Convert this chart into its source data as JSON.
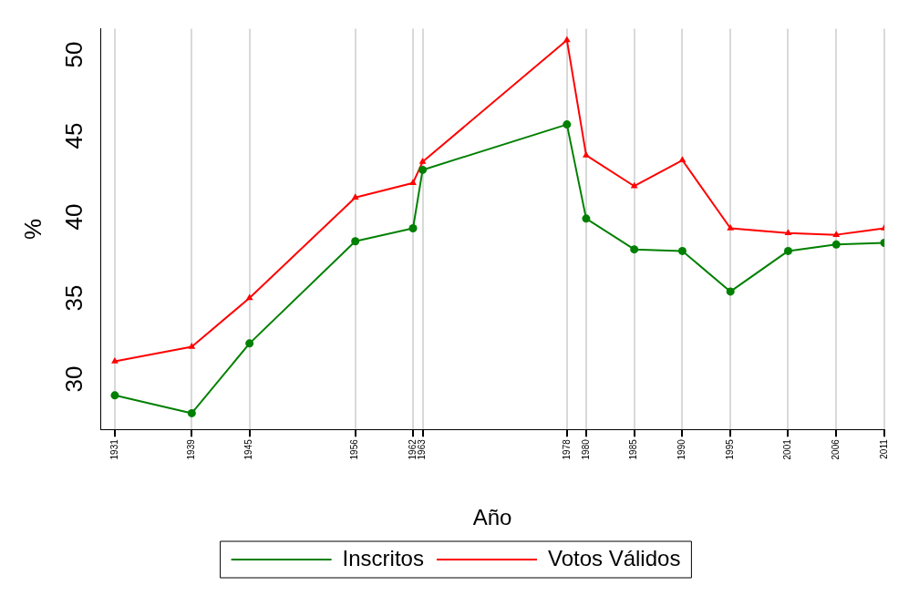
{
  "chart_data": {
    "type": "line",
    "xlabel": "Año",
    "ylabel": "%",
    "x": [
      1931,
      1939,
      1945,
      1956,
      1962,
      1963,
      1978,
      1980,
      1985,
      1990,
      1995,
      2001,
      2006,
      2011
    ],
    "xticks": [
      1931,
      1939,
      1945,
      1956,
      1962,
      1963,
      1978,
      1980,
      1985,
      1990,
      1995,
      2001,
      2006,
      2011
    ],
    "xlim": [
      1929.5,
      2011
    ],
    "ylim": [
      26.9,
      51.6
    ],
    "yticks": [
      30,
      35,
      40,
      45,
      50
    ],
    "grid": "x",
    "legend": "bottom",
    "line_style": "solid",
    "series": [
      {
        "name": "Inscritos",
        "color": "#008000",
        "marker": "circle",
        "values": [
          29.0,
          27.9,
          32.2,
          38.5,
          39.3,
          42.9,
          45.7,
          39.9,
          38.0,
          37.9,
          35.4,
          37.9,
          38.3,
          38.4
        ]
      },
      {
        "name": "Votos Válidos",
        "color": "#ff0000",
        "marker": "triangle",
        "values": [
          31.1,
          32.0,
          35.0,
          41.2,
          42.1,
          43.4,
          50.9,
          43.8,
          41.9,
          43.5,
          39.3,
          39.0,
          38.9,
          39.3
        ]
      }
    ]
  }
}
